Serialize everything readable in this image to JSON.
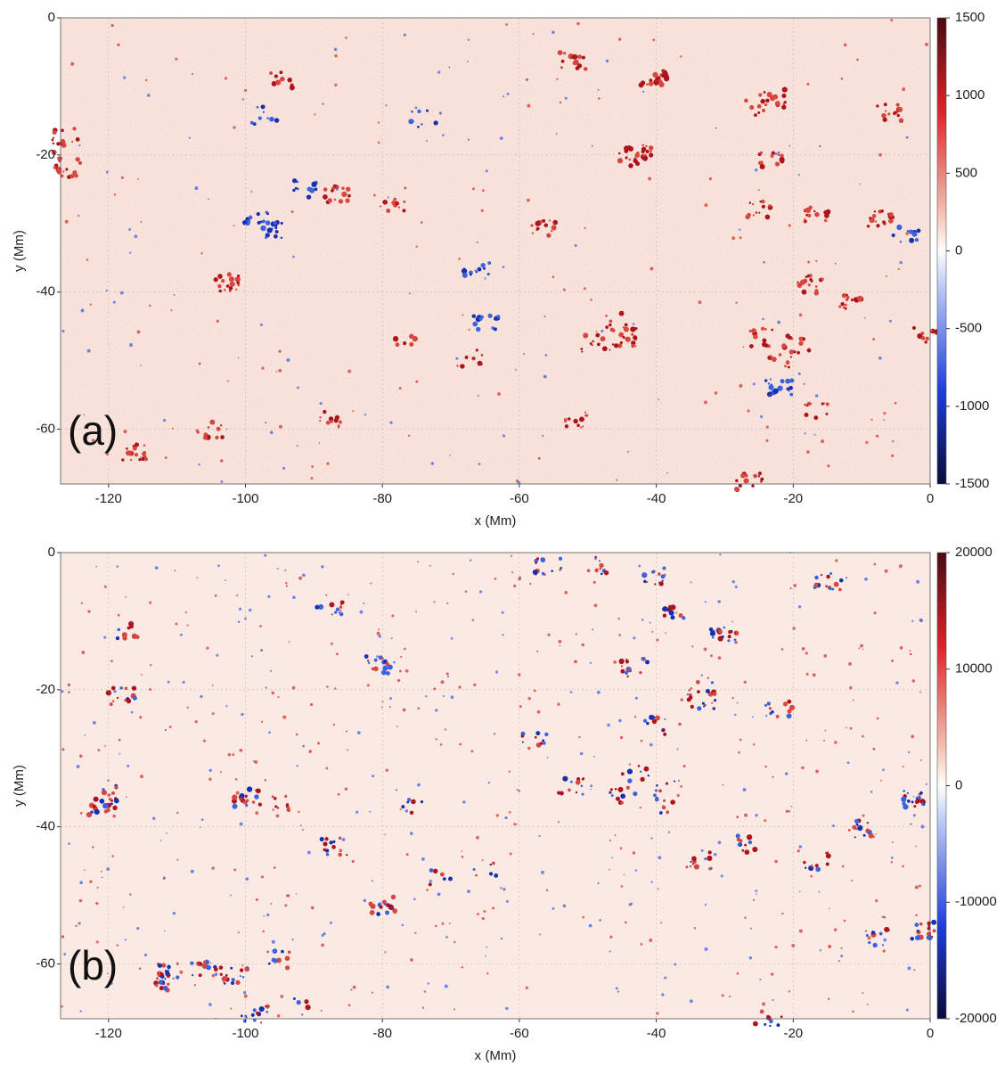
{
  "chart_data": [
    {
      "type": "heatmap",
      "panel_label": "(a)",
      "xlabel": "x (Mm)",
      "ylabel": "y (Mm)",
      "xlim": [
        -127,
        0
      ],
      "xticks": [
        -120,
        -100,
        -80,
        -60,
        -40,
        -20,
        0
      ],
      "ylim": [
        -68,
        0
      ],
      "yticks": [
        0,
        -20,
        -40,
        -60
      ],
      "grid": true,
      "colorbar": {
        "lim": [
          -1500,
          1500
        ],
        "ticks": [
          1500,
          1000,
          500,
          0,
          -500,
          -1000,
          -1500
        ]
      }
    },
    {
      "type": "heatmap",
      "panel_label": "(b)",
      "xlabel": "x (Mm)",
      "ylabel": "y (Mm)",
      "xlim": [
        -127,
        0
      ],
      "xticks": [
        -120,
        -100,
        -80,
        -60,
        -40,
        -20,
        0
      ],
      "ylim": [
        -68,
        0
      ],
      "yticks": [
        0,
        -20,
        -40,
        -60
      ],
      "grid": true,
      "colorbar": {
        "lim": [
          -20000,
          20000
        ],
        "ticks": [
          20000,
          10000,
          0,
          -10000,
          -20000
        ]
      }
    }
  ]
}
